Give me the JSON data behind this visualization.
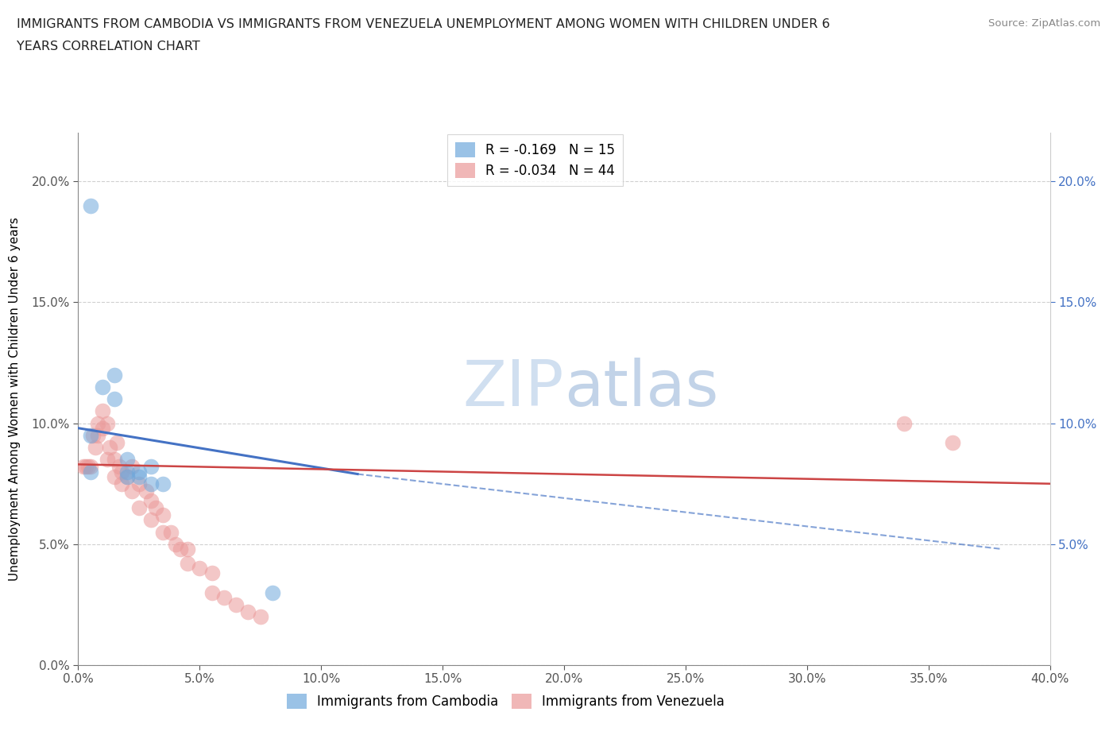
{
  "title_line1": "IMMIGRANTS FROM CAMBODIA VS IMMIGRANTS FROM VENEZUELA UNEMPLOYMENT AMONG WOMEN WITH CHILDREN UNDER 6",
  "title_line2": "YEARS CORRELATION CHART",
  "source": "Source: ZipAtlas.com",
  "ylabel_label": "Unemployment Among Women with Children Under 6 years",
  "xlim": [
    0.0,
    0.4
  ],
  "ylim": [
    0.0,
    0.22
  ],
  "cambodia_color": "#6fa8dc",
  "cambodia_edge_color": "#6fa8dc",
  "venezuela_color": "#ea9999",
  "venezuela_edge_color": "#ea9999",
  "cambodia_R": -0.169,
  "cambodia_N": 15,
  "venezuela_R": -0.034,
  "venezuela_N": 44,
  "cambodia_line_color": "#4472c4",
  "venezuela_line_color": "#cc4444",
  "background_color": "#ffffff",
  "grid_color": "#d0d0d0",
  "right_axis_color": "#4472c4",
  "watermark_color": "#d0dff0",
  "watermark_text": "ZIPatlas",
  "cambodia_scatter_x": [
    0.005,
    0.005,
    0.01,
    0.015,
    0.015,
    0.02,
    0.02,
    0.025,
    0.025,
    0.03,
    0.03,
    0.035,
    0.005,
    0.08,
    0.02
  ],
  "cambodia_scatter_y": [
    0.095,
    0.08,
    0.115,
    0.12,
    0.11,
    0.08,
    0.085,
    0.08,
    0.078,
    0.075,
    0.082,
    0.075,
    0.19,
    0.03,
    0.078
  ],
  "venezuela_scatter_x": [
    0.002,
    0.003,
    0.004,
    0.005,
    0.006,
    0.007,
    0.008,
    0.008,
    0.01,
    0.01,
    0.012,
    0.012,
    0.013,
    0.015,
    0.015,
    0.016,
    0.017,
    0.018,
    0.018,
    0.02,
    0.022,
    0.022,
    0.025,
    0.025,
    0.028,
    0.03,
    0.03,
    0.032,
    0.035,
    0.035,
    0.038,
    0.04,
    0.042,
    0.045,
    0.045,
    0.05,
    0.055,
    0.055,
    0.06,
    0.065,
    0.07,
    0.075,
    0.34,
    0.36
  ],
  "venezuela_scatter_y": [
    0.082,
    0.082,
    0.082,
    0.082,
    0.095,
    0.09,
    0.1,
    0.095,
    0.105,
    0.098,
    0.1,
    0.085,
    0.09,
    0.085,
    0.078,
    0.092,
    0.082,
    0.08,
    0.075,
    0.078,
    0.082,
    0.072,
    0.075,
    0.065,
    0.072,
    0.068,
    0.06,
    0.065,
    0.062,
    0.055,
    0.055,
    0.05,
    0.048,
    0.048,
    0.042,
    0.04,
    0.038,
    0.03,
    0.028,
    0.025,
    0.022,
    0.02,
    0.1,
    0.092
  ],
  "cam_line_x0": 0.0,
  "cam_line_x1": 0.115,
  "cam_line_y0": 0.098,
  "cam_line_y1": 0.079,
  "ven_line_x0": 0.0,
  "ven_line_x1": 0.4,
  "ven_line_y0": 0.083,
  "ven_line_y1": 0.075,
  "dash_line_x0": 0.115,
  "dash_line_x1": 0.38,
  "dash_line_y0": 0.079,
  "dash_line_y1": 0.048
}
